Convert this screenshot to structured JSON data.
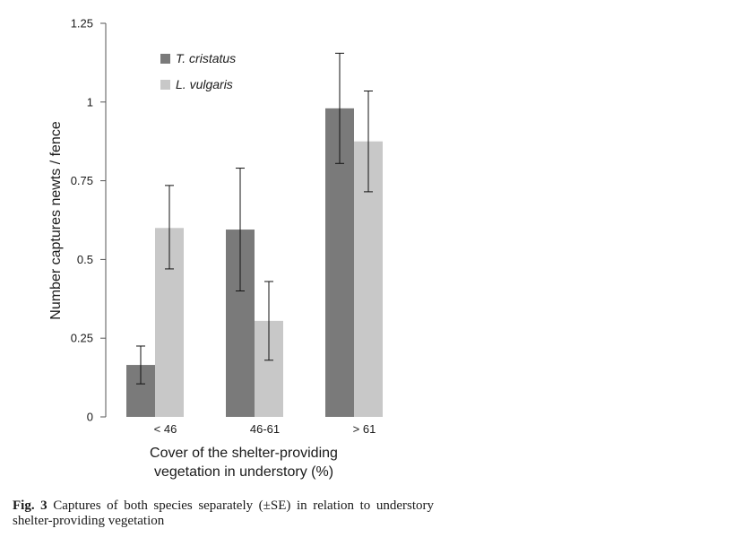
{
  "chart_data": {
    "type": "bar",
    "categories": [
      "< 46",
      "46-61",
      "> 61"
    ],
    "series": [
      {
        "name": "T. cristatus",
        "color": "#7a7a7a",
        "values": [
          0.165,
          0.595,
          0.98
        ],
        "error_low": [
          0.105,
          0.4,
          0.805
        ],
        "error_high": [
          0.225,
          0.79,
          1.155
        ]
      },
      {
        "name": "L. vulgaris",
        "color": "#c8c8c8",
        "values": [
          0.6,
          0.305,
          0.875
        ],
        "error_low": [
          0.47,
          0.18,
          0.715
        ],
        "error_high": [
          0.735,
          0.43,
          1.035
        ]
      }
    ],
    "yticks": [
      "0",
      "0.25",
      "0.5",
      "0.75",
      "1",
      "1.25"
    ],
    "ylim": [
      0,
      1.25
    ],
    "ylabel": "Number captures newts / fence",
    "xlabel_line1": "Cover of the shelter-providing",
    "xlabel_line2": "vegetation in understory (%)",
    "legend_position": "top-left",
    "grid": false
  },
  "caption": {
    "label": "Fig. 3",
    "text": "Captures of both species separately (±SE) in relation to understory shelter-providing vegetation"
  }
}
